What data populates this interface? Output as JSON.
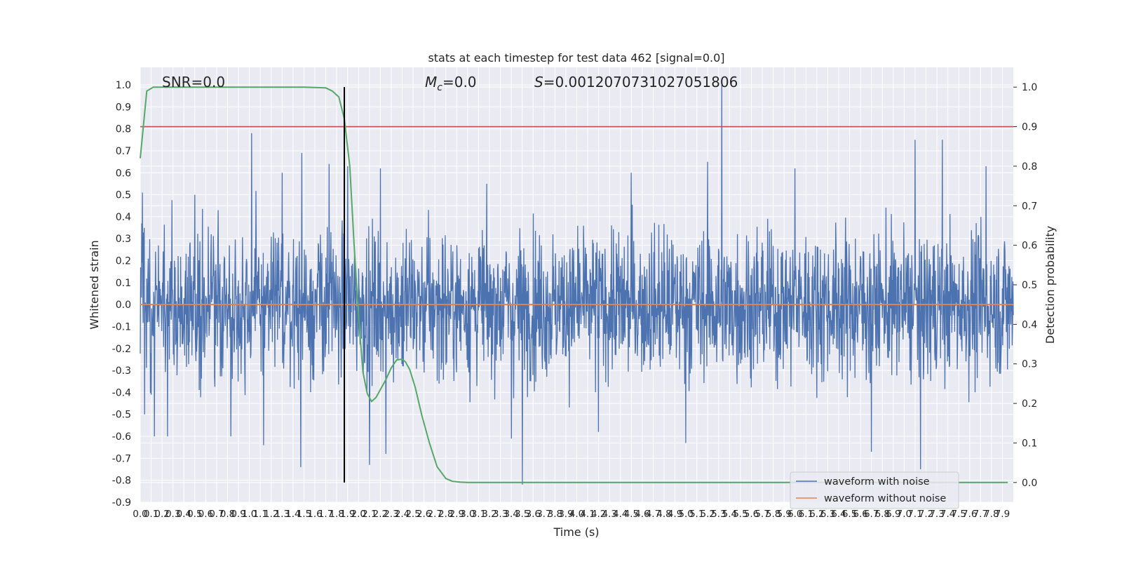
{
  "chart_data": {
    "type": "line",
    "title": "stats at each timestep for test data 462 [signal=0.0]",
    "xlabel": "Time (s)",
    "ylabel": "Whitened strain",
    "y2label": "Detection probability",
    "xlim": [
      0.0,
      8.0
    ],
    "ylim": [
      -0.9,
      1.08
    ],
    "y2lim": [
      -0.05,
      1.05
    ],
    "grid": true,
    "legend_placement": "lower-right",
    "annotations": {
      "snr": "SNR=0.0",
      "mc_symbol": "M",
      "mc_sub": "c",
      "mc_value": "=0.0",
      "s_symbol": "S",
      "s_value": "=0.0012070731027051806"
    },
    "x_ticks": [
      "0.0",
      "0.1",
      "0.2",
      "0.3",
      "0.4",
      "0.5",
      "0.6",
      "0.7",
      "0.8",
      "0.9",
      "1.0",
      "1.1",
      "1.2",
      "1.3",
      "1.4",
      "1.5",
      "1.6",
      "1.7",
      "1.8",
      "1.9",
      "2.0",
      "2.1",
      "2.2",
      "2.3",
      "2.4",
      "2.5",
      "2.6",
      "2.7",
      "2.8",
      "2.9",
      "3.0",
      "3.1",
      "3.2",
      "3.3",
      "3.4",
      "3.5",
      "3.6",
      "3.7",
      "3.8",
      "3.9",
      "4.0",
      "4.1",
      "4.2",
      "4.3",
      "4.4",
      "4.5",
      "4.6",
      "4.7",
      "4.8",
      "4.9",
      "5.0",
      "5.1",
      "5.2",
      "5.3",
      "5.4",
      "5.5",
      "5.6",
      "5.7",
      "5.8",
      "5.9",
      "6.0",
      "6.1",
      "6.2",
      "6.3",
      "6.4",
      "6.5",
      "6.6",
      "6.7",
      "6.8",
      "6.9",
      "7.0",
      "7.1",
      "7.2",
      "7.3",
      "7.4",
      "7.5",
      "7.6",
      "7.7",
      "7.8",
      "7.9"
    ],
    "y_ticks": [
      "1.0",
      "0.9",
      "0.8",
      "0.7",
      "0.6",
      "0.5",
      "0.4",
      "0.3",
      "0.2",
      "0.1",
      "0.0",
      "-0.1",
      "-0.2",
      "-0.3",
      "-0.4",
      "-0.5",
      "-0.6",
      "-0.7",
      "-0.8",
      "-0.9"
    ],
    "y2_ticks": [
      "1.0",
      "0.9",
      "0.8",
      "0.7",
      "0.6",
      "0.5",
      "0.4",
      "0.3",
      "0.2",
      "0.1",
      "0.0"
    ],
    "noisy_waveform": {
      "name": "waveform with noise",
      "color": "#4c72b0",
      "typical_band": [
        -0.3,
        0.3
      ],
      "spikes": [
        [
          0.02,
          0.51
        ],
        [
          0.04,
          -0.5
        ],
        [
          0.13,
          -0.6
        ],
        [
          0.25,
          -0.6
        ],
        [
          0.5,
          0.5
        ],
        [
          0.83,
          -0.6
        ],
        [
          1.02,
          0.78
        ],
        [
          1.13,
          -0.64
        ],
        [
          1.3,
          0.6
        ],
        [
          1.48,
          0.69
        ],
        [
          1.47,
          -0.74
        ],
        [
          1.73,
          0.64
        ],
        [
          1.9,
          0.63
        ],
        [
          2.1,
          -0.73
        ],
        [
          2.2,
          0.62
        ],
        [
          2.25,
          -0.68
        ],
        [
          3.4,
          -0.61
        ],
        [
          3.5,
          -0.82
        ],
        [
          4.2,
          -0.58
        ],
        [
          4.5,
          0.6
        ],
        [
          5.0,
          -0.63
        ],
        [
          5.2,
          0.65
        ],
        [
          5.33,
          1.0
        ],
        [
          6.0,
          0.62
        ],
        [
          6.7,
          -0.67
        ],
        [
          7.1,
          0.75
        ],
        [
          7.15,
          -0.75
        ],
        [
          7.35,
          0.75
        ],
        [
          7.75,
          0.63
        ]
      ]
    },
    "clean_waveform": {
      "name": "waveform without noise",
      "color": "#dd8452",
      "value": 0.0
    },
    "detection_probability": {
      "color": "#55a868",
      "x": [
        0.0,
        0.06,
        0.12,
        0.2,
        0.5,
        1.0,
        1.5,
        1.7,
        1.76,
        1.82,
        1.87,
        1.92,
        1.96,
        2.0,
        2.04,
        2.08,
        2.12,
        2.16,
        2.2,
        2.25,
        2.3,
        2.35,
        2.4,
        2.43,
        2.47,
        2.52,
        2.58,
        2.65,
        2.72,
        2.8,
        2.86,
        2.93,
        3.0,
        3.5,
        4.0,
        5.0,
        6.0,
        7.0,
        7.95
      ],
      "y": [
        0.82,
        0.99,
        1.0,
        1.0,
        1.0,
        1.0,
        1.0,
        0.998,
        0.99,
        0.975,
        0.92,
        0.8,
        0.6,
        0.42,
        0.28,
        0.225,
        0.205,
        0.215,
        0.235,
        0.26,
        0.29,
        0.31,
        0.312,
        0.305,
        0.285,
        0.24,
        0.17,
        0.1,
        0.04,
        0.01,
        0.003,
        0.001,
        0.0,
        0.0,
        0.0,
        0.0,
        0.0,
        0.0,
        0.0
      ]
    },
    "threshold": {
      "value": 0.9,
      "axis": "right",
      "color": "#c44e52"
    },
    "trigger_time": {
      "value": 1.87,
      "color": "#000000"
    }
  },
  "legend": {
    "items": [
      {
        "label": "waveform with noise",
        "color": "#4c72b0"
      },
      {
        "label": "waveform without noise",
        "color": "#dd8452"
      }
    ]
  }
}
